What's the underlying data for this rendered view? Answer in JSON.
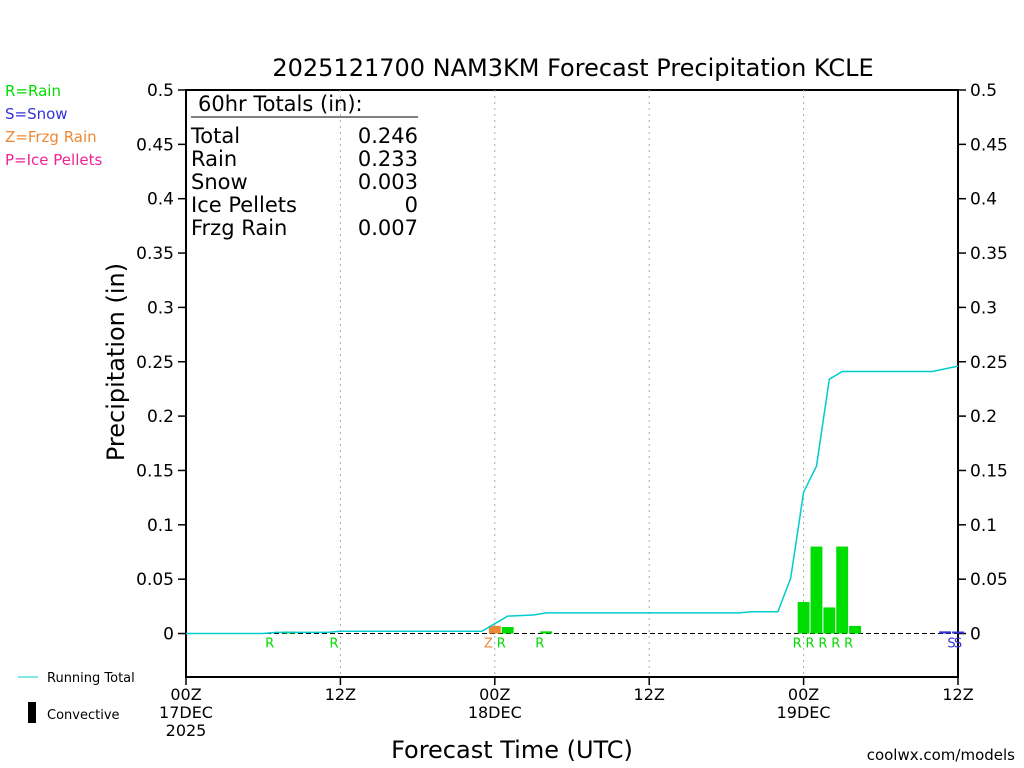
{
  "chart_data": {
    "type": "bar",
    "title": "2025121700 NAM3KM Forecast Precipitation KCLE",
    "xlabel": "Forecast Time (UTC)",
    "ylabel": "Precipitation (in)",
    "ylim": [
      -0.04,
      0.5
    ],
    "xlim_hours": [
      0,
      60
    ],
    "yticks": [
      {
        "v": 0.5,
        "label": "0.5"
      },
      {
        "v": 0.45,
        "label": "0.45"
      },
      {
        "v": 0.4,
        "label": "0.4"
      },
      {
        "v": 0.35,
        "label": "0.35"
      },
      {
        "v": 0.3,
        "label": "0.3"
      },
      {
        "v": 0.25,
        "label": "0.25"
      },
      {
        "v": 0.2,
        "label": "0.2"
      },
      {
        "v": 0.15,
        "label": "0.15"
      },
      {
        "v": 0.1,
        "label": "0.1"
      },
      {
        "v": 0.05,
        "label": "0.05"
      },
      {
        "v": 0,
        "label": "0"
      }
    ],
    "xticks": [
      {
        "h": 0,
        "lines": [
          "00Z",
          "17DEC",
          "2025"
        ]
      },
      {
        "h": 12,
        "lines": [
          "12Z"
        ]
      },
      {
        "h": 24,
        "lines": [
          "00Z",
          "18DEC"
        ]
      },
      {
        "h": 36,
        "lines": [
          "12Z"
        ]
      },
      {
        "h": 48,
        "lines": [
          "00Z",
          "19DEC"
        ]
      },
      {
        "h": 60,
        "lines": [
          "12Z"
        ]
      }
    ],
    "gridlines_hours": [
      12,
      24,
      36,
      48
    ],
    "bars": [
      {
        "h": 8,
        "value": 0.001,
        "type": "R"
      },
      {
        "h": 24,
        "value": 0.007,
        "type": "Z"
      },
      {
        "h": 25,
        "value": 0.006,
        "type": "R"
      },
      {
        "h": 28,
        "value": 0.002,
        "type": "R"
      },
      {
        "h": 48,
        "value": 0.029,
        "type": "R"
      },
      {
        "h": 49,
        "value": 0.08,
        "type": "R"
      },
      {
        "h": 50,
        "value": 0.024,
        "type": "R"
      },
      {
        "h": 51,
        "value": 0.08,
        "type": "R"
      },
      {
        "h": 52,
        "value": 0.007,
        "type": "R"
      },
      {
        "h": 59,
        "value": 0.002,
        "type": "S"
      },
      {
        "h": 60,
        "value": 0.001,
        "type": "S"
      }
    ],
    "type_labels": [
      {
        "h": 6.5,
        "code": "R"
      },
      {
        "h": 11.5,
        "code": "R"
      },
      {
        "h": 23.5,
        "code": "Z"
      },
      {
        "h": 24.5,
        "code": "R"
      },
      {
        "h": 27.5,
        "code": "R"
      },
      {
        "h": 47.5,
        "code": "R"
      },
      {
        "h": 48.5,
        "code": "R"
      },
      {
        "h": 49.5,
        "code": "R"
      },
      {
        "h": 50.5,
        "code": "R"
      },
      {
        "h": 51.5,
        "code": "R"
      },
      {
        "h": 59.5,
        "code": "S"
      },
      {
        "h": 60.0,
        "code": "S"
      }
    ],
    "running_total": {
      "name": "Running Total",
      "points": [
        [
          0,
          0.0
        ],
        [
          6,
          0.0
        ],
        [
          7,
          0.001
        ],
        [
          11,
          0.001
        ],
        [
          12,
          0.002
        ],
        [
          23,
          0.002
        ],
        [
          24,
          0.009
        ],
        [
          25,
          0.016
        ],
        [
          27,
          0.017
        ],
        [
          28,
          0.019
        ],
        [
          43,
          0.019
        ],
        [
          44,
          0.02
        ],
        [
          46,
          0.02
        ],
        [
          47,
          0.051
        ],
        [
          48,
          0.13
        ],
        [
          49,
          0.154
        ],
        [
          50,
          0.234
        ],
        [
          51,
          0.241
        ],
        [
          58,
          0.241
        ],
        [
          60,
          0.246
        ]
      ]
    },
    "totals_box": {
      "heading": "60hr Totals (in):",
      "rows": [
        {
          "label": "Total",
          "value": "0.246"
        },
        {
          "label": "Rain",
          "value": "0.233"
        },
        {
          "label": "Snow",
          "value": "0.003"
        },
        {
          "label": "Ice Pellets",
          "value": "0"
        },
        {
          "label": "Frzg Rain",
          "value": "0.007"
        }
      ]
    },
    "legend": [
      {
        "text": "R=Rain",
        "code": "R"
      },
      {
        "text": "S=Snow",
        "code": "S"
      },
      {
        "text": "Z=Frzg Rain",
        "code": "Z"
      },
      {
        "text": "P=Ice Pellets",
        "code": "P"
      }
    ],
    "bottom_legend": {
      "running_total_label": "Running Total",
      "convective_label": "Convective"
    },
    "colors": {
      "R": "#00dd00",
      "S": "#3333dd",
      "Z": "#ee8833",
      "P": "#ee2299",
      "running_total": "#00cccc",
      "axis": "#000000",
      "grid": "#aaaaaa",
      "credit": "#dd2222"
    },
    "credit": "coolwx.com/models"
  }
}
